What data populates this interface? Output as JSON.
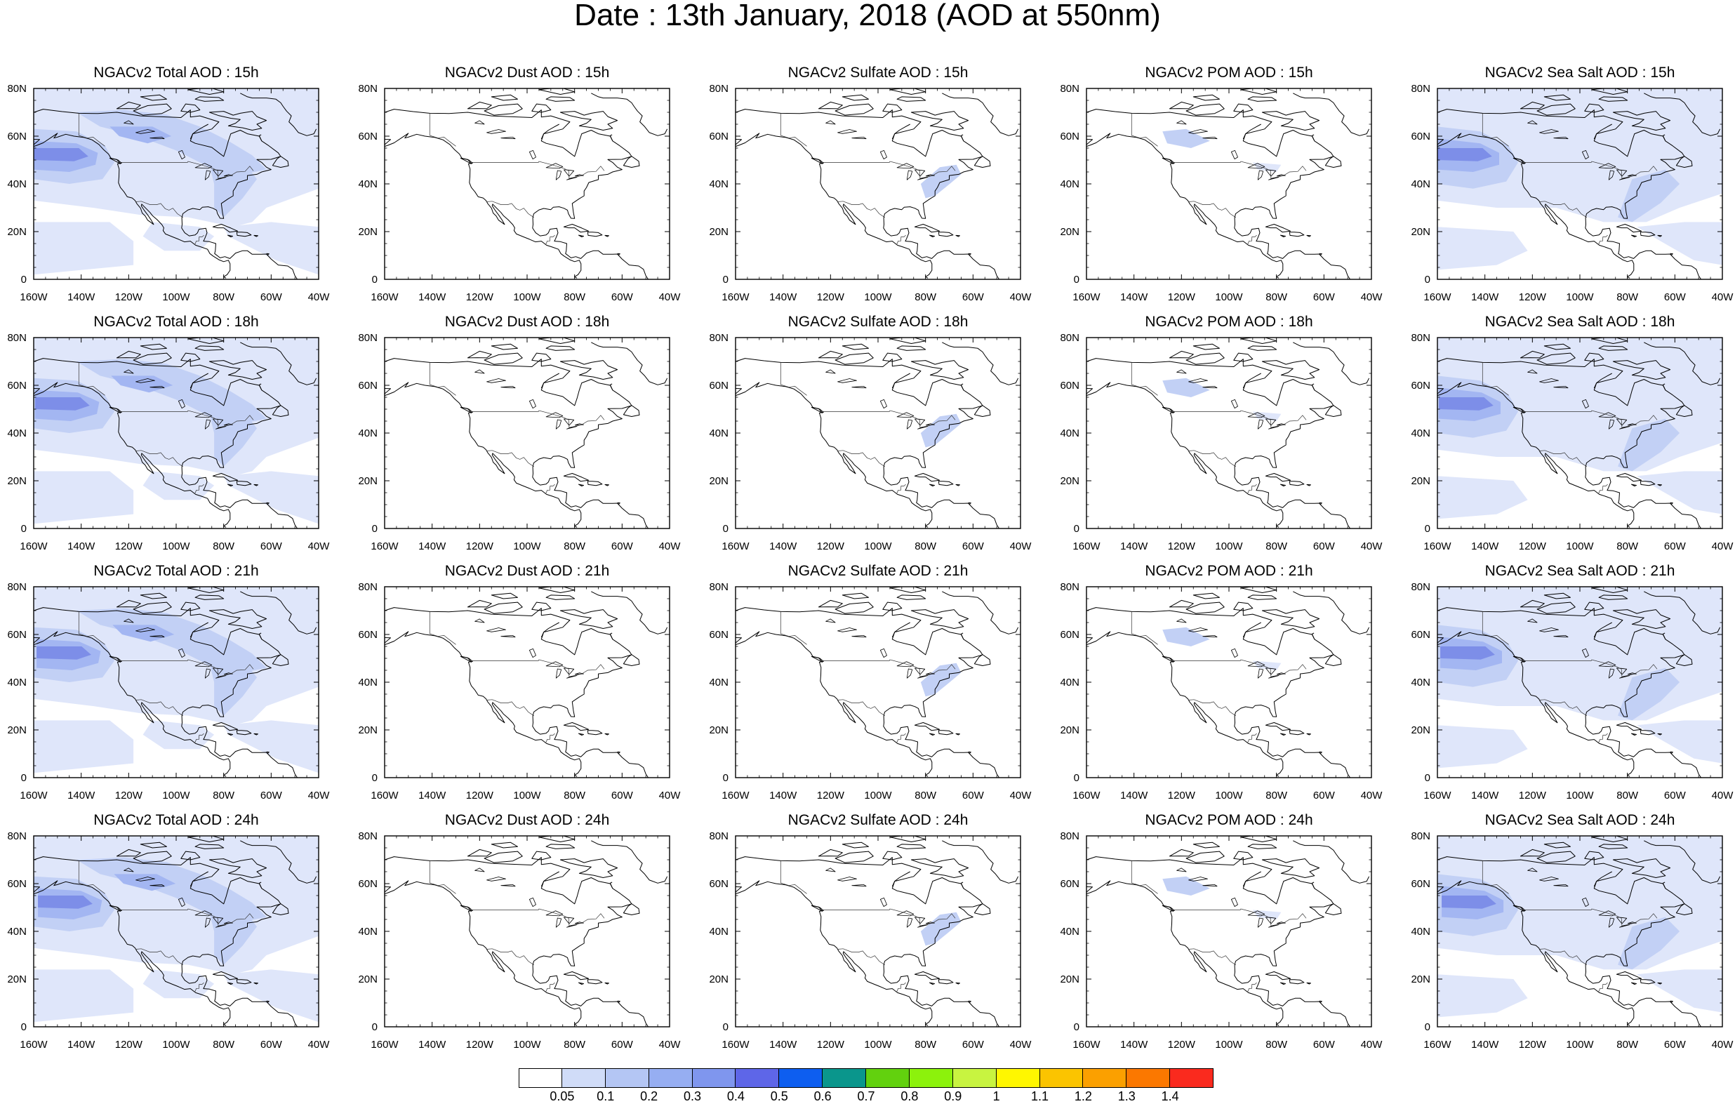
{
  "title": "Date : 13th January, 2018 (AOD at 550nm)",
  "columns": [
    {
      "name": "NGACv2 Total AOD",
      "key": "total"
    },
    {
      "name": "NGACv2 Dust AOD",
      "key": "dust"
    },
    {
      "name": "NGACv2 Sulfate AOD",
      "key": "sulfate"
    },
    {
      "name": "NGACv2 POM AOD",
      "key": "pom"
    },
    {
      "name": "NGACv2 Sea Salt AOD",
      "key": "seasalt"
    }
  ],
  "panel_titles": [
    [
      "NGACv2 Total AOD : 15h",
      "NGACv2 Dust AOD : 15h",
      "NGACv2 Sulfate AOD : 15h",
      "NGACv2 POM AOD : 15h",
      "NGACv2 Sea Salt AOD : 15h"
    ],
    [
      "NGACv2 Total AOD : 18h",
      "NGACv2 Dust AOD : 18h",
      "NGACv2 Sulfate AOD : 18h",
      "NGACv2 POM AOD : 18h",
      "NGACv2 Sea Salt AOD : 18h"
    ],
    [
      "NGACv2 Total AOD : 21h",
      "NGACv2 Dust AOD : 21h",
      "NGACv2 Sulfate AOD : 21h",
      "NGACv2 POM AOD : 21h",
      "NGACv2 Sea Salt AOD : 21h"
    ],
    [
      "NGACv2 Total AOD : 24h",
      "NGACv2 Dust AOD : 24h",
      "NGACv2 Sulfate AOD : 24h",
      "NGACv2 POM AOD : 24h",
      "NGACv2 Sea Salt  AOD : 24h"
    ]
  ],
  "hours": [
    "15h",
    "18h",
    "21h",
    "24h"
  ],
  "map_extent": {
    "lon_min": -160,
    "lon_max": -40,
    "lat_min": 0,
    "lat_max": 80
  },
  "lon_ticks": [
    "160W",
    "140W",
    "120W",
    "100W",
    "80W",
    "60W",
    "40W"
  ],
  "lat_ticks": [
    "0",
    "20N",
    "40N",
    "60N",
    "80N"
  ],
  "colorbar": {
    "labels": [
      "0.05",
      "0.1",
      "0.2",
      "0.3",
      "0.4",
      "0.5",
      "0.6",
      "0.7",
      "0.8",
      "0.9",
      "1",
      "1.1",
      "1.2",
      "1.3",
      "1.4"
    ],
    "colors": [
      "#ffffff",
      "#d0dcf8",
      "#b4c6f4",
      "#96aef2",
      "#7f96ee",
      "#5e66e8",
      "#0d5ef0",
      "#0a968c",
      "#62d10e",
      "#8cf20c",
      "#c8f440",
      "#fff700",
      "#fbc400",
      "#fba000",
      "#fb7800",
      "#fa2a1e"
    ]
  },
  "aod_field_shades": [
    "#dfe6fa",
    "#c2d0f5",
    "#a3b6f2",
    "#7d8ee8",
    "#4c5ed8"
  ]
}
